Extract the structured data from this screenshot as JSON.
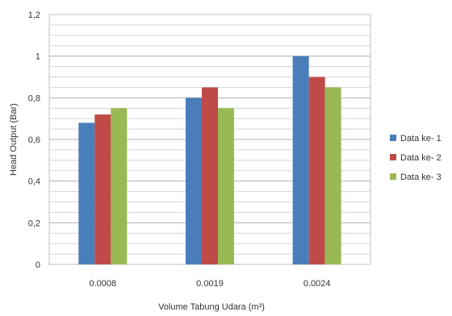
{
  "chart_data": {
    "type": "bar",
    "categories": [
      "0.0008",
      "0.0019",
      "0.0024"
    ],
    "series": [
      {
        "name": "Data ke- 1",
        "values": [
          0.68,
          0.8,
          1.0
        ],
        "color": "#4a7ebb"
      },
      {
        "name": "Data ke- 2",
        "values": [
          0.72,
          0.85,
          0.9
        ],
        "color": "#be4b48"
      },
      {
        "name": "Data ke- 3",
        "values": [
          0.75,
          0.75,
          0.85
        ],
        "color": "#98b954"
      }
    ],
    "title": "",
    "xlabel": "Volume Tabung Udara (m³)",
    "ylabel": "Head Output (Bar)",
    "ylim": [
      0,
      1.2
    ],
    "yticks": [
      "0",
      "0,2",
      "0,4",
      "0,6",
      "0,8",
      "1",
      "1,2"
    ],
    "grid": true,
    "legend_position": "right"
  }
}
